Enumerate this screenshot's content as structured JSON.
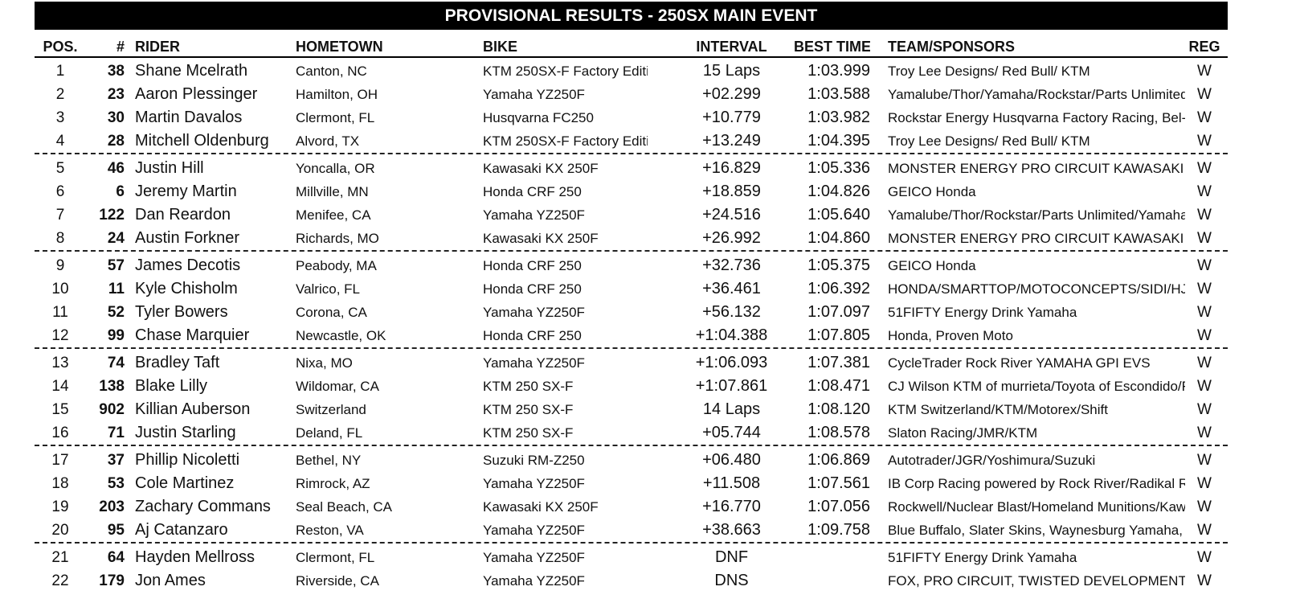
{
  "banner": {
    "title": "PROVISIONAL RESULTS - 250SX MAIN EVENT"
  },
  "header": {
    "pos": "POS.",
    "num": "#",
    "rider": "RIDER",
    "hometown": "HOMETOWN",
    "bike": "BIKE",
    "interval": "INTERVAL",
    "best_time": "BEST TIME",
    "team": "TEAM/SPONSORS",
    "reg": "REG"
  },
  "rows": [
    {
      "pos": "1",
      "num": "38",
      "rider": "Shane Mcelrath",
      "hometown": "Canton, NC",
      "bike": "KTM 250SX-F Factory Editi",
      "interval": "15 Laps",
      "best": "1:03.999",
      "team": "Troy Lee Designs/ Red Bull/ KTM",
      "reg": "W"
    },
    {
      "pos": "2",
      "num": "23",
      "rider": "Aaron Plessinger",
      "hometown": "Hamilton, OH",
      "bike": "Yamaha YZ250F",
      "interval": "+02.299",
      "best": "1:03.588",
      "team": "Yamalube/Thor/Yamaha/Rockstar/Parts Unlimited",
      "reg": "W"
    },
    {
      "pos": "3",
      "num": "30",
      "rider": "Martin Davalos",
      "hometown": "Clermont, FL",
      "bike": "Husqvarna FC250",
      "interval": "+10.779",
      "best": "1:03.982",
      "team": "Rockstar Energy Husqvarna Factory Racing, Bel-I",
      "reg": "W"
    },
    {
      "pos": "4",
      "num": "28",
      "rider": "Mitchell Oldenburg",
      "hometown": "Alvord, TX",
      "bike": "KTM 250SX-F Factory Editi",
      "interval": "+13.249",
      "best": "1:04.395",
      "team": "Troy Lee Designs/ Red Bull/ KTM",
      "reg": "W"
    },
    {
      "pos": "5",
      "num": "46",
      "rider": "Justin Hill",
      "hometown": "Yoncalla, OR",
      "bike": "Kawasaki KX 250F",
      "interval": "+16.829",
      "best": "1:05.336",
      "team": "MONSTER ENERGY PRO CIRCUIT KAWASAKI",
      "reg": "W"
    },
    {
      "pos": "6",
      "num": "6",
      "rider": "Jeremy Martin",
      "hometown": "Millville, MN",
      "bike": "Honda CRF 250",
      "interval": "+18.859",
      "best": "1:04.826",
      "team": "GEICO Honda",
      "reg": "W"
    },
    {
      "pos": "7",
      "num": "122",
      "rider": "Dan Reardon",
      "hometown": "Menifee, CA",
      "bike": "Yamaha YZ250F",
      "interval": "+24.516",
      "best": "1:05.640",
      "team": "Yamalube/Thor/Rockstar/Parts Unlimited/Yamaha",
      "reg": "W"
    },
    {
      "pos": "8",
      "num": "24",
      "rider": "Austin Forkner",
      "hometown": "Richards, MO",
      "bike": "Kawasaki KX 250F",
      "interval": "+26.992",
      "best": "1:04.860",
      "team": "MONSTER ENERGY PRO CIRCUIT KAWASAKI",
      "reg": "W"
    },
    {
      "pos": "9",
      "num": "57",
      "rider": "James Decotis",
      "hometown": "Peabody, MA",
      "bike": "Honda CRF 250",
      "interval": "+32.736",
      "best": "1:05.375",
      "team": "GEICO Honda",
      "reg": "W"
    },
    {
      "pos": "10",
      "num": "11",
      "rider": "Kyle Chisholm",
      "hometown": "Valrico, FL",
      "bike": "Honda CRF 250",
      "interval": "+36.461",
      "best": "1:06.392",
      "team": "HONDA/SMARTTOP/MOTOCONCEPTS/SIDI/HJ",
      "reg": "W"
    },
    {
      "pos": "11",
      "num": "52",
      "rider": "Tyler Bowers",
      "hometown": "Corona, CA",
      "bike": "Yamaha YZ250F",
      "interval": "+56.132",
      "best": "1:07.097",
      "team": "51FIFTY Energy Drink Yamaha",
      "reg": "W"
    },
    {
      "pos": "12",
      "num": "99",
      "rider": "Chase Marquier",
      "hometown": "Newcastle, OK",
      "bike": "Honda CRF 250",
      "interval": "+1:04.388",
      "best": "1:07.805",
      "team": "Honda, Proven Moto",
      "reg": "W"
    },
    {
      "pos": "13",
      "num": "74",
      "rider": "Bradley Taft",
      "hometown": "Nixa, MO",
      "bike": "Yamaha YZ250F",
      "interval": "+1:06.093",
      "best": "1:07.381",
      "team": "CycleTrader Rock River YAMAHA GPI EVS",
      "reg": "W"
    },
    {
      "pos": "14",
      "num": "138",
      "rider": "Blake Lilly",
      "hometown": "Wildomar, CA",
      "bike": "KTM 250 SX-F",
      "interval": "+1:07.861",
      "best": "1:08.471",
      "team": "CJ Wilson KTM of murrieta/Toyota of Escondido/F",
      "reg": "W"
    },
    {
      "pos": "15",
      "num": "902",
      "rider": "Killian Auberson",
      "hometown": "Switzerland",
      "bike": "KTM 250 SX-F",
      "interval": "14 Laps",
      "best": "1:08.120",
      "team": "KTM Switzerland/KTM/Motorex/Shift",
      "reg": "W"
    },
    {
      "pos": "16",
      "num": "71",
      "rider": "Justin Starling",
      "hometown": "Deland, FL",
      "bike": "KTM 250 SX-F",
      "interval": "+05.744",
      "best": "1:08.578",
      "team": "Slaton Racing/JMR/KTM",
      "reg": "W"
    },
    {
      "pos": "17",
      "num": "37",
      "rider": "Phillip Nicoletti",
      "hometown": "Bethel, NY",
      "bike": "Suzuki RM-Z250",
      "interval": "+06.480",
      "best": "1:06.869",
      "team": "Autotrader/JGR/Yoshimura/Suzuki",
      "reg": "W"
    },
    {
      "pos": "18",
      "num": "53",
      "rider": "Cole Martinez",
      "hometown": "Rimrock, AZ",
      "bike": "Yamaha YZ250F",
      "interval": "+11.508",
      "best": "1:07.561",
      "team": "IB Corp Racing powered by Rock River/Radikal R",
      "reg": "W"
    },
    {
      "pos": "19",
      "num": "203",
      "rider": "Zachary Commans",
      "hometown": "Seal Beach, CA",
      "bike": "Kawasaki KX 250F",
      "interval": "+16.770",
      "best": "1:07.056",
      "team": "Rockwell/Nuclear Blast/Homeland Munitions/Kaw",
      "reg": "W"
    },
    {
      "pos": "20",
      "num": "95",
      "rider": "Aj Catanzaro",
      "hometown": "Reston, VA",
      "bike": "Yamaha YZ250F",
      "interval": "+38.663",
      "best": "1:09.758",
      "team": "Blue Buffalo, Slater Skins, Waynesburg Yamaha,",
      "reg": "W"
    },
    {
      "pos": "21",
      "num": "64",
      "rider": "Hayden Mellross",
      "hometown": "Clermont, FL",
      "bike": "Yamaha YZ250F",
      "interval": "DNF",
      "best": "",
      "team": "51FIFTY Energy Drink Yamaha",
      "reg": "W"
    },
    {
      "pos": "22",
      "num": "179",
      "rider": "Jon Ames",
      "hometown": "Riverside, CA",
      "bike": "Yamaha YZ250F",
      "interval": "DNS",
      "best": "",
      "team": "FOX, PRO CIRCUIT, TWISTED DEVELOPMENT",
      "reg": "W"
    }
  ]
}
